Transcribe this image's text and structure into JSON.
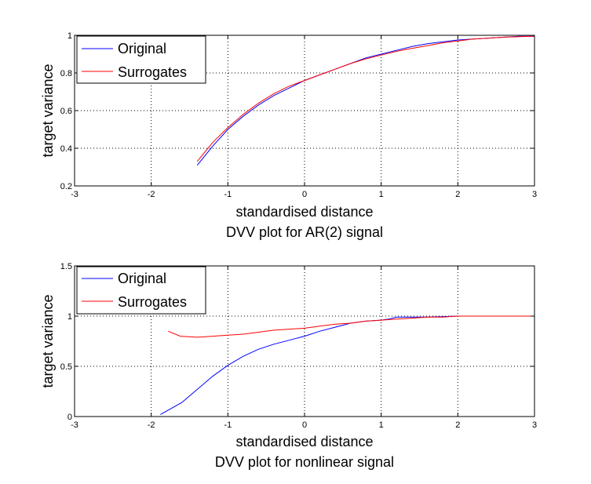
{
  "chart_data": [
    {
      "type": "line",
      "title": "DVV plot for AR(2) signal",
      "xlabel": "standardised distance",
      "ylabel": "target variance",
      "xlim": [
        -3,
        3
      ],
      "ylim": [
        0.2,
        1
      ],
      "xticks": [
        "-3",
        "-2",
        "-1",
        "0",
        "1",
        "2",
        "3"
      ],
      "yticks": [
        "0.2",
        "0.4",
        "0.6",
        "0.8",
        "1"
      ],
      "grid": true,
      "legend_position": "top-left",
      "series": [
        {
          "name": "Original",
          "color": "#0000ff",
          "x": [
            -1.4,
            -1.2,
            -1.0,
            -0.8,
            -0.6,
            -0.4,
            -0.2,
            0.0,
            0.2,
            0.4,
            0.6,
            0.8,
            1.0,
            1.2,
            1.4,
            1.6,
            1.8,
            2.0,
            2.2,
            2.4,
            2.6,
            2.8,
            3.0
          ],
          "y": [
            0.31,
            0.41,
            0.5,
            0.57,
            0.63,
            0.68,
            0.72,
            0.76,
            0.79,
            0.82,
            0.85,
            0.88,
            0.9,
            0.92,
            0.94,
            0.955,
            0.965,
            0.975,
            0.98,
            0.985,
            0.99,
            0.995,
            0.995
          ]
        },
        {
          "name": "Surrogates",
          "color": "#ff0000",
          "x": [
            -1.4,
            -1.2,
            -1.0,
            -0.8,
            -0.6,
            -0.4,
            -0.2,
            0.0,
            0.2,
            0.4,
            0.6,
            0.8,
            1.0,
            1.2,
            1.4,
            1.6,
            1.8,
            2.0,
            2.2,
            2.4,
            2.6,
            2.8,
            3.0
          ],
          "y": [
            0.33,
            0.43,
            0.51,
            0.58,
            0.64,
            0.69,
            0.73,
            0.76,
            0.79,
            0.82,
            0.85,
            0.875,
            0.895,
            0.915,
            0.93,
            0.945,
            0.96,
            0.97,
            0.98,
            0.985,
            0.99,
            0.993,
            0.995
          ]
        }
      ]
    },
    {
      "type": "line",
      "title": "DVV plot for nonlinear signal",
      "xlabel": "standardised distance",
      "ylabel": "target variance",
      "xlim": [
        -3,
        3
      ],
      "ylim": [
        0,
        1.5
      ],
      "xticks": [
        "-3",
        "-2",
        "-1",
        "0",
        "1",
        "2",
        "3"
      ],
      "yticks": [
        "0",
        "0.5",
        "1",
        "1.5"
      ],
      "grid": true,
      "legend_position": "top-left",
      "series": [
        {
          "name": "Original",
          "color": "#0000ff",
          "x": [
            -1.88,
            -1.6,
            -1.4,
            -1.2,
            -1.0,
            -0.8,
            -0.6,
            -0.4,
            -0.2,
            0.0,
            0.2,
            0.4,
            0.6,
            0.8,
            1.0,
            1.1,
            1.2,
            1.4,
            1.6,
            1.8,
            2.0,
            2.2,
            2.4,
            2.6
          ],
          "y": [
            0.02,
            0.14,
            0.27,
            0.4,
            0.51,
            0.6,
            0.67,
            0.72,
            0.76,
            0.8,
            0.85,
            0.89,
            0.93,
            0.95,
            0.96,
            0.97,
            0.99,
            0.99,
            0.99,
            0.995,
            1.0,
            1.0,
            1.0,
            1.0
          ]
        },
        {
          "name": "Surrogates",
          "color": "#ff0000",
          "x": [
            -1.78,
            -1.62,
            -1.4,
            -1.2,
            -1.0,
            -0.8,
            -0.6,
            -0.4,
            -0.2,
            0.0,
            0.2,
            0.4,
            0.6,
            0.8,
            1.0,
            1.2,
            1.4,
            1.6,
            1.8,
            2.0,
            2.2,
            2.4,
            2.6,
            2.8,
            3.0
          ],
          "y": [
            0.85,
            0.8,
            0.79,
            0.8,
            0.81,
            0.82,
            0.84,
            0.86,
            0.87,
            0.88,
            0.9,
            0.92,
            0.93,
            0.95,
            0.96,
            0.97,
            0.98,
            0.99,
            0.99,
            1.0,
            1.0,
            1.0,
            1.0,
            1.0,
            1.0
          ]
        }
      ]
    }
  ]
}
